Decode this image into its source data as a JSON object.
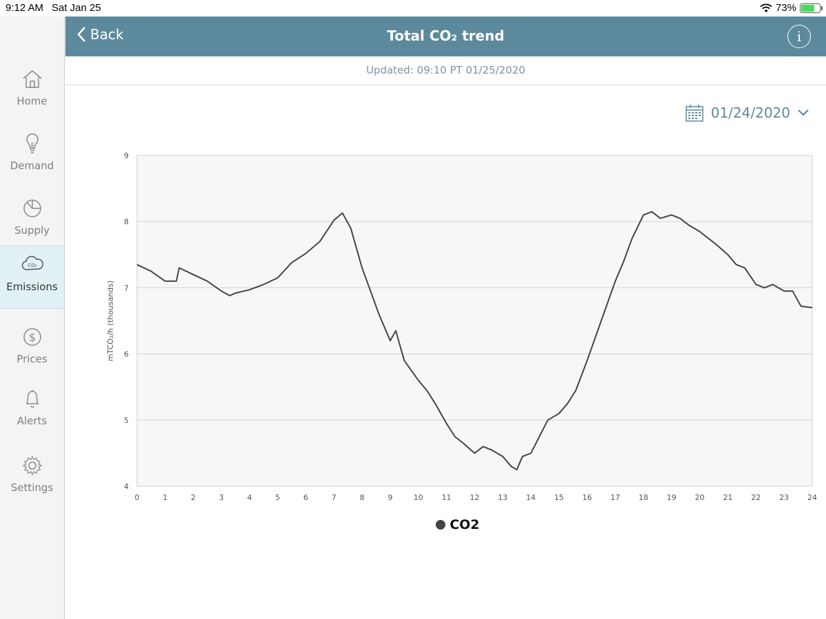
{
  "status": {
    "time": "9:12 AM",
    "date": "Sat Jan 25",
    "battery": "73%",
    "battery_level": 0.73
  },
  "header": {
    "back_label": "Back",
    "title": "Total CO₂ trend",
    "info_glyph": "i"
  },
  "updated": "Updated: 09:10 PT 01/25/2020",
  "date_selector": {
    "value": "01/24/2020"
  },
  "sidebar": {
    "items": [
      {
        "label": "Home",
        "icon": "home-icon"
      },
      {
        "label": "Demand",
        "icon": "lightbulb-icon"
      },
      {
        "label": "Supply",
        "icon": "pie-chart-icon"
      },
      {
        "label": "Emissions",
        "icon": "co2-cloud-icon",
        "active": true
      },
      {
        "label": "Prices",
        "icon": "dollar-icon"
      },
      {
        "label": "Alerts",
        "icon": "bell-icon"
      },
      {
        "label": "Settings",
        "icon": "gear-icon"
      }
    ]
  },
  "chart_data": {
    "type": "line",
    "title": "",
    "xlabel": "",
    "ylabel": "mTCO₂/h (thousands)",
    "xlim": [
      0,
      24
    ],
    "ylim": [
      4,
      9
    ],
    "xticks": [
      "0",
      "1",
      "2",
      "3",
      "4",
      "5",
      "6",
      "7",
      "8",
      "9",
      "10",
      "11",
      "12",
      "13",
      "14",
      "15",
      "16",
      "17",
      "18",
      "19",
      "20",
      "21",
      "22",
      "23",
      "24"
    ],
    "yticks": [
      "4",
      "5",
      "6",
      "7",
      "8",
      "9"
    ],
    "grid": true,
    "legend_position": "bottom",
    "series": [
      {
        "name": "CO2",
        "color": "#444444",
        "x": [
          0,
          0.5,
          1,
          1.4,
          1.5,
          2,
          2.5,
          3,
          3.3,
          3.5,
          4,
          4.5,
          5,
          5.5,
          6,
          6.5,
          7,
          7.3,
          7.6,
          8,
          8.3,
          8.6,
          9,
          9.2,
          9.5,
          10,
          10.3,
          10.6,
          11,
          11.3,
          11.6,
          12,
          12.3,
          12.6,
          13,
          13.3,
          13.5,
          13.7,
          14,
          14.3,
          14.6,
          15,
          15.3,
          15.6,
          16,
          16.5,
          17,
          17.3,
          17.6,
          18,
          18.3,
          18.6,
          19,
          19.3,
          19.6,
          20,
          20.3,
          20.6,
          21,
          21.3,
          21.6,
          22,
          22.3,
          22.6,
          23,
          23.3,
          23.6,
          24
        ],
        "y": [
          7.35,
          7.25,
          7.1,
          7.1,
          7.3,
          7.2,
          7.1,
          6.95,
          6.88,
          6.92,
          6.97,
          7.05,
          7.15,
          7.38,
          7.52,
          7.7,
          8.02,
          8.13,
          7.9,
          7.3,
          6.95,
          6.6,
          6.2,
          6.35,
          5.9,
          5.6,
          5.45,
          5.25,
          4.95,
          4.75,
          4.65,
          4.5,
          4.6,
          4.55,
          4.45,
          4.3,
          4.25,
          4.45,
          4.5,
          4.75,
          5.0,
          5.1,
          5.25,
          5.45,
          5.9,
          6.5,
          7.1,
          7.4,
          7.75,
          8.1,
          8.15,
          8.05,
          8.1,
          8.05,
          7.95,
          7.85,
          7.75,
          7.65,
          7.5,
          7.35,
          7.3,
          7.05,
          7.0,
          7.05,
          6.95,
          6.95,
          6.72,
          6.7
        ]
      }
    ]
  }
}
